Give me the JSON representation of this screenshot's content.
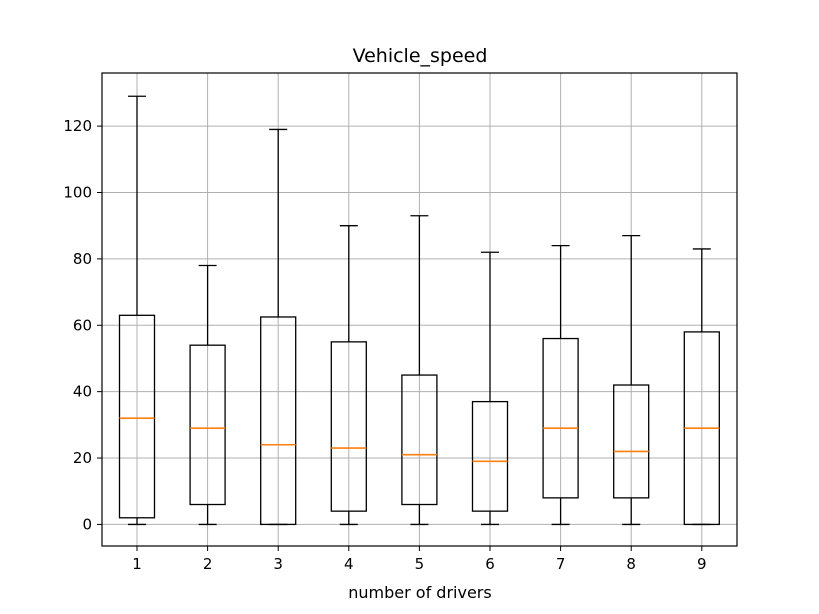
{
  "chart_data": {
    "type": "box",
    "title": "Vehicle_speed",
    "xlabel": "number of drivers",
    "ylabel": "",
    "categories": [
      "1",
      "2",
      "3",
      "4",
      "5",
      "6",
      "7",
      "8",
      "9"
    ],
    "yticks": [
      "0",
      "20",
      "40",
      "60",
      "80",
      "100",
      "120"
    ],
    "ylim": [
      -6.5,
      136
    ],
    "grid": true,
    "boxes": [
      {
        "category": "1",
        "whisker_low": 0,
        "q1": 2,
        "median": 32,
        "q3": 63,
        "whisker_high": 129
      },
      {
        "category": "2",
        "whisker_low": 0,
        "q1": 6,
        "median": 29,
        "q3": 54,
        "whisker_high": 78
      },
      {
        "category": "3",
        "whisker_low": 0,
        "q1": 0,
        "median": 24,
        "q3": 62.5,
        "whisker_high": 119
      },
      {
        "category": "4",
        "whisker_low": 0,
        "q1": 4,
        "median": 23,
        "q3": 55,
        "whisker_high": 90
      },
      {
        "category": "5",
        "whisker_low": 0,
        "q1": 6,
        "median": 21,
        "q3": 45,
        "whisker_high": 93
      },
      {
        "category": "6",
        "whisker_low": 0,
        "q1": 4,
        "median": 19,
        "q3": 37,
        "whisker_high": 82
      },
      {
        "category": "7",
        "whisker_low": 0,
        "q1": 8,
        "median": 29,
        "q3": 56,
        "whisker_high": 84
      },
      {
        "category": "8",
        "whisker_low": 0,
        "q1": 8,
        "median": 22,
        "q3": 42,
        "whisker_high": 87
      },
      {
        "category": "9",
        "whisker_low": 0,
        "q1": 0,
        "median": 29,
        "q3": 58,
        "whisker_high": 83
      }
    ],
    "colors": {
      "box": "#000000",
      "median": "#ff7f0e",
      "grid": "#b0b0b0"
    }
  }
}
